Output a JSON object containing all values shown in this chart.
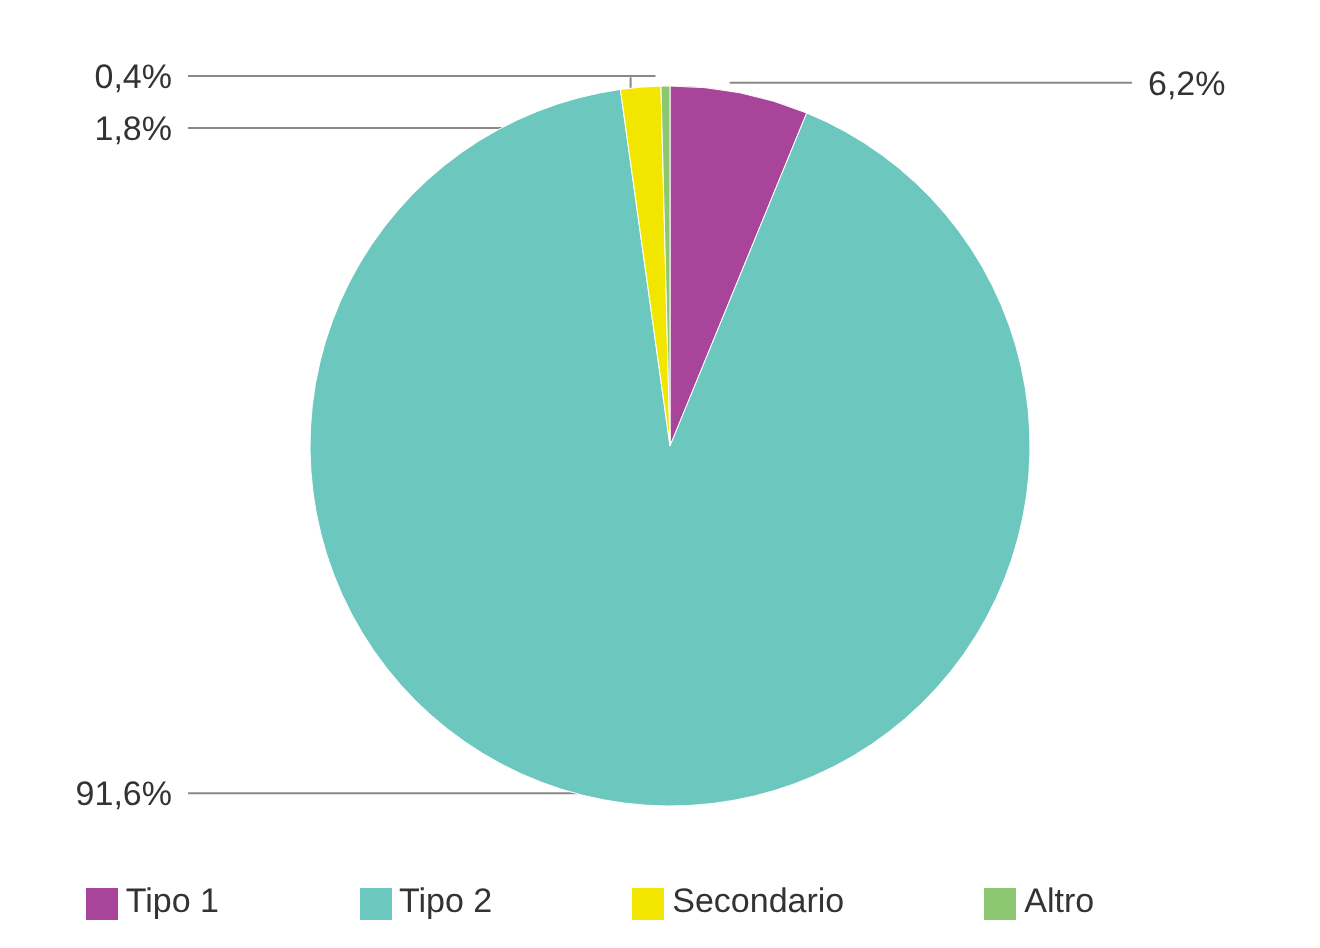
{
  "chart_data": {
    "type": "pie",
    "categories": [
      "Tipo 1",
      "Tipo 2",
      "Secondario",
      "Altro"
    ],
    "values": [
      6.2,
      91.6,
      1.8,
      0.4
    ],
    "colors": [
      "#a8449a",
      "#6cc8bf",
      "#f2e600",
      "#8cc870"
    ],
    "value_labels": [
      "6,2%",
      "91,6%",
      "1,8%",
      "0,4%"
    ],
    "legend": "bottom"
  }
}
